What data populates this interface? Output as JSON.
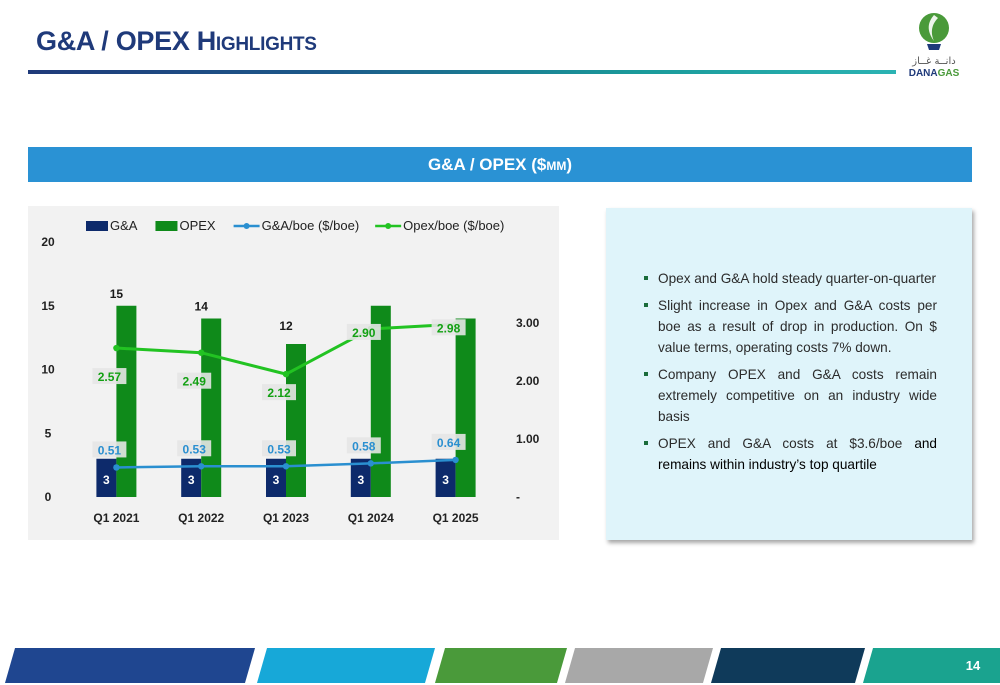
{
  "header": {
    "title": "G&A / OPEX Highlights"
  },
  "logo": {
    "arabic": "دانــة غــاز",
    "name_part1": "DANA",
    "name_part2": "GAS"
  },
  "banner": {
    "prefix": "G&A / OPEX ($",
    "smallcaps": "mm",
    "suffix": ")"
  },
  "chart_data": {
    "type": "bar",
    "categories": [
      "Q1 2021",
      "Q1 2022",
      "Q1 2023",
      "Q1 2024",
      "Q1 2025"
    ],
    "series": [
      {
        "name": "G&A",
        "type": "bar",
        "axis": "left",
        "values": [
          3,
          3,
          3,
          3,
          3
        ],
        "color": "#0d2a6b",
        "labels": [
          "3",
          "3",
          "3",
          "3",
          "3"
        ]
      },
      {
        "name": "OPEX",
        "type": "bar",
        "axis": "left",
        "values": [
          15,
          14,
          12,
          15,
          14
        ],
        "color": "#0f8a1a",
        "labels": [
          "15",
          "14",
          "12",
          "",
          ""
        ]
      },
      {
        "name": "G&A/boe ($/boe)",
        "type": "line",
        "axis": "right",
        "values": [
          0.51,
          0.53,
          0.53,
          0.58,
          0.64
        ],
        "color": "#2a8fd0",
        "labels": [
          "0.51",
          "0.53",
          "0.53",
          "0.58",
          "0.64"
        ]
      },
      {
        "name": "Opex/boe ($/boe)",
        "type": "line",
        "axis": "right",
        "values": [
          2.57,
          2.49,
          2.12,
          2.9,
          2.98
        ],
        "color": "#22c322",
        "labels": [
          "2.57",
          "2.49",
          "2.12",
          "2.90",
          "2.98"
        ]
      }
    ],
    "ylim_left": [
      0,
      20
    ],
    "yticks_left": [
      "0",
      "5",
      "10",
      "15",
      "20"
    ],
    "ylim_right": [
      0,
      4.4
    ],
    "yticks_right": [
      "-",
      "1.00",
      "2.00",
      "3.00"
    ],
    "legend": "top",
    "grid": false
  },
  "notes": [
    {
      "text": "Opex and G&A hold steady quarter-on-quarter",
      "tail": ""
    },
    {
      "text": "Slight increase in Opex and G&A costs per boe as a result of drop in production. On $ value terms, operating costs 7%  down.",
      "tail": ""
    },
    {
      "text": "Company OPEX and G&A costs remain extremely competitive on an industry wide basis",
      "tail": ""
    },
    {
      "text": "OPEX and G&A costs at $3.6/boe ",
      "tail": "and remains within industry’s top quartile"
    }
  ],
  "footer": {
    "page_number": "14",
    "bands": [
      "#1f4690",
      "#17a8d8",
      "#4a9a3a",
      "#a8a8a8",
      "#0f3a5a",
      "#1aa38f"
    ]
  }
}
